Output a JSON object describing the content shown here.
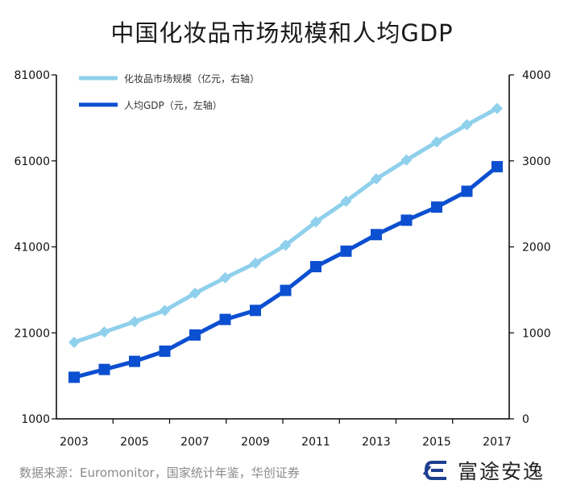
{
  "title": "中国化妆品市场规模和人均GDP",
  "source": "数据来源：Euromonitor，国家统计年鉴，华创证券",
  "brand": {
    "name": "富途安逸",
    "logo_icon": "futu-logo-icon"
  },
  "chart_data": {
    "type": "line",
    "title": "中国化妆品市场规模和人均GDP",
    "x": [
      2003,
      2004,
      2005,
      2006,
      2007,
      2008,
      2009,
      2010,
      2011,
      2012,
      2013,
      2014,
      2015,
      2016,
      2017
    ],
    "x_tick_labels": [
      "2003",
      "2005",
      "2007",
      "2009",
      "2011",
      "2013",
      "2015",
      "2017"
    ],
    "left_axis": {
      "range": [
        1000,
        81000
      ],
      "ticks": [
        "1000",
        "21000",
        "41000",
        "61000",
        "81000"
      ]
    },
    "right_axis": {
      "range": [
        0,
        4000
      ],
      "ticks": [
        "0",
        "1000",
        "2000",
        "3000",
        "4000"
      ]
    },
    "series": [
      {
        "name": "化妆品市场规模（亿元，右轴）",
        "axis": "right",
        "color": "#8fd0ec",
        "marker": "diamond",
        "values": [
          890,
          1010,
          1130,
          1260,
          1460,
          1640,
          1810,
          2020,
          2290,
          2530,
          2790,
          3010,
          3220,
          3420,
          3610
        ]
      },
      {
        "name": "人均GDP（元，左轴）",
        "axis": "left",
        "color": "#0c4fd0",
        "marker": "square",
        "values": [
          10666,
          12487,
          14368,
          16738,
          20505,
          24121,
          26222,
          30876,
          36403,
          40007,
          43852,
          47203,
          50251,
          53935,
          59660
        ]
      }
    ],
    "legend": "top-left",
    "grid": false
  }
}
